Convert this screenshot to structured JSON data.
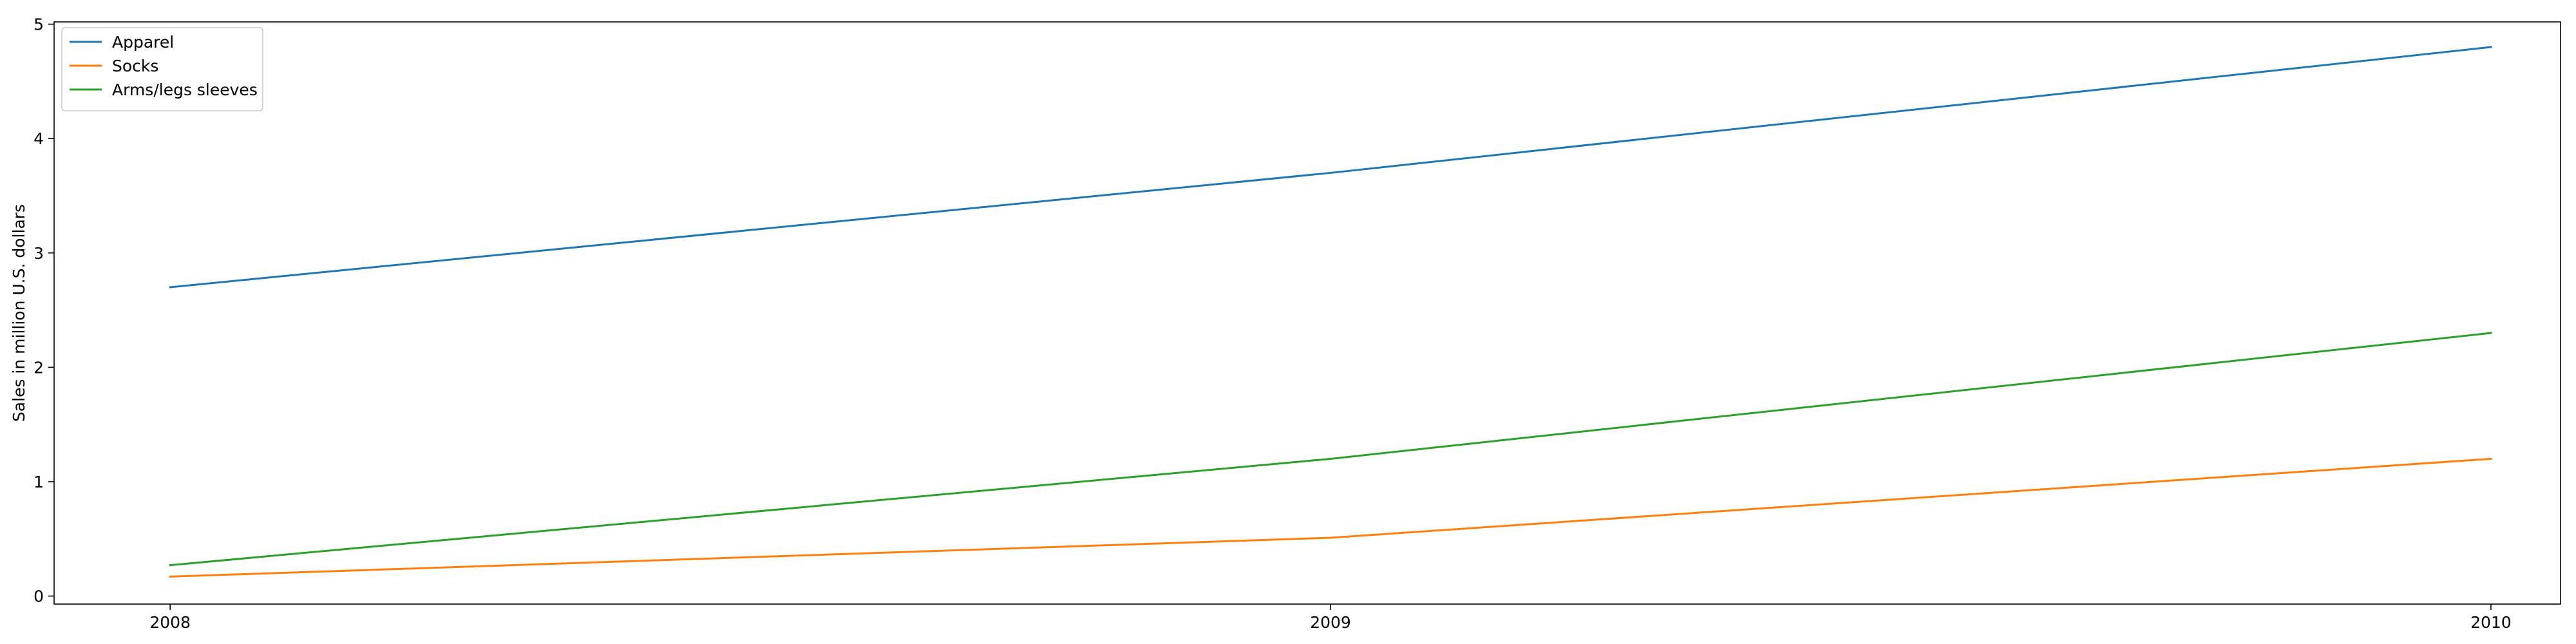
{
  "chart_data": {
    "type": "line",
    "title": "",
    "xlabel": "",
    "ylabel": "Sales in million U.S. dollars",
    "x": [
      "2008",
      "2009",
      "2010"
    ],
    "xlim": [
      2007.9,
      2010.06
    ],
    "ylim": [
      -0.07,
      5.02
    ],
    "yticks": [
      0,
      1,
      2,
      3,
      4,
      5
    ],
    "grid": false,
    "legend_position": "top-left",
    "series": [
      {
        "name": "Apparel",
        "color": "#1f77b4",
        "values": [
          2.7,
          3.7,
          4.8
        ]
      },
      {
        "name": "Socks",
        "color": "#ff7f0e",
        "values": [
          0.17,
          0.51,
          1.2
        ]
      },
      {
        "name": "Arms/legs sleeves",
        "color": "#2ca02c",
        "values": [
          0.27,
          1.2,
          2.3
        ]
      }
    ]
  }
}
